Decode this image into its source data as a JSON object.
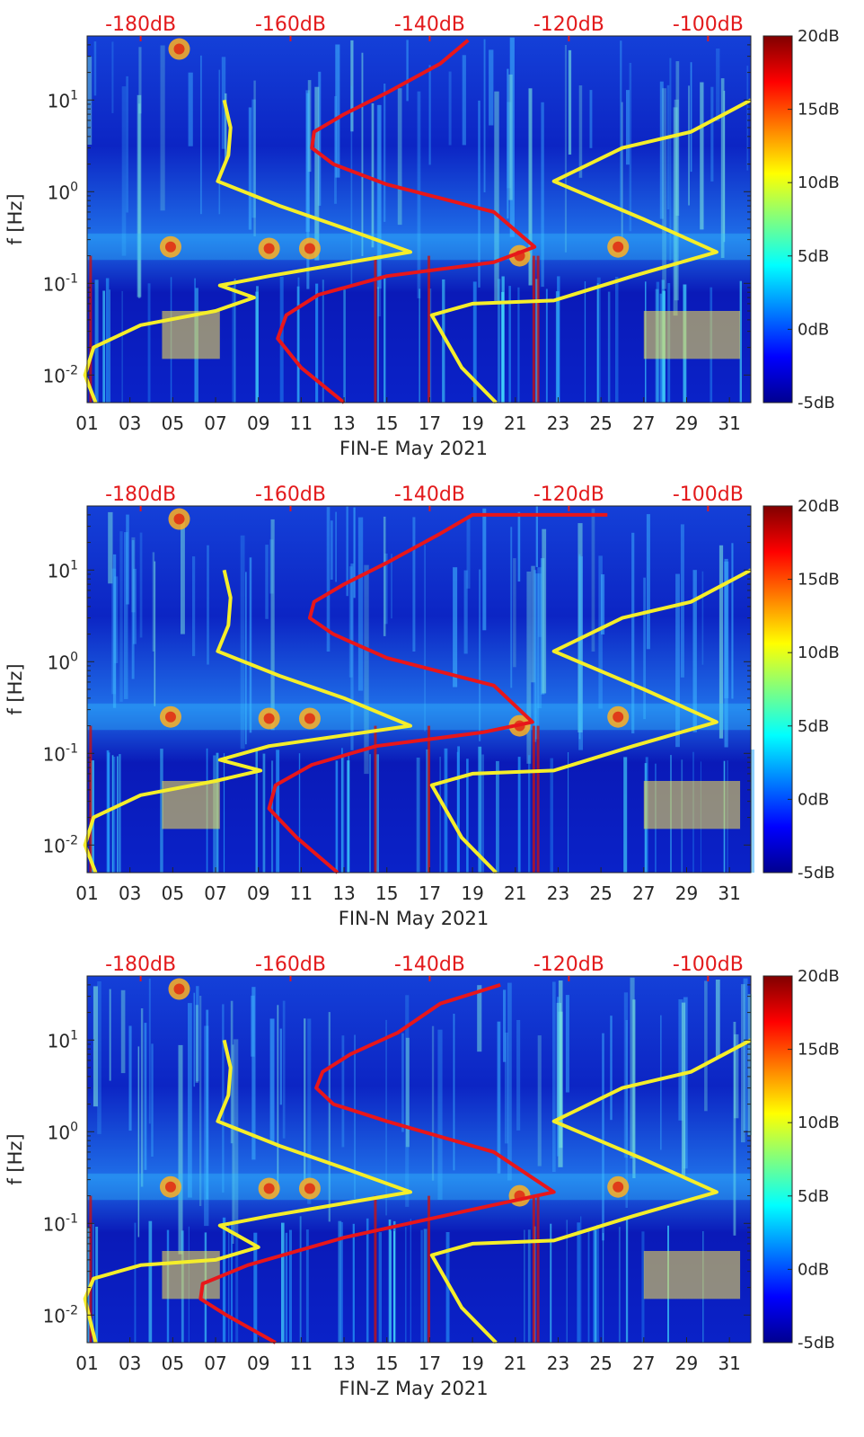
{
  "colors": {
    "background_low": "#0a1ab8",
    "red_curve": "#e8161a",
    "yellow_curve": "#f5ee2a",
    "top_axis_text": "#e31a1c"
  },
  "chart_data": [
    {
      "type": "heatmap",
      "xlabel": "FIN-E May 2021",
      "ylabel": "f [Hz]",
      "x_ticks": [
        "01",
        "03",
        "05",
        "07",
        "09",
        "11",
        "13",
        "15",
        "17",
        "19",
        "21",
        "23",
        "25",
        "27",
        "29",
        "31"
      ],
      "y_ticks": [
        "10^{-2}",
        "10^{-1}",
        "10^{0}",
        "10^{1}"
      ],
      "y_tick_values": [
        0.01,
        0.1,
        1,
        10
      ],
      "top_ticks": [
        "-180dB",
        "-160dB",
        "-140dB",
        "-120dB",
        "-100dB"
      ],
      "top_tick_days": [
        3.5,
        10.5,
        17,
        23.5,
        30
      ],
      "colorbar_ticks": [
        "20dB",
        "15dB",
        "10dB",
        "5dB",
        "0dB",
        "-5dB"
      ],
      "colorbar_values": [
        20,
        15,
        10,
        5,
        0,
        -5
      ],
      "xlim": [
        1,
        32
      ],
      "ylim": [
        0.005,
        50
      ],
      "series": [
        {
          "color": "red",
          "x": [
            13.0,
            11.0,
            9.9,
            10.3,
            11.8,
            15.0,
            20.0,
            21.9,
            20.0,
            15.0,
            12.5,
            11.5,
            11.6,
            13.0,
            15.0,
            17.5,
            18.8
          ],
          "y": [
            0.005,
            0.012,
            0.025,
            0.045,
            0.075,
            0.12,
            0.17,
            0.25,
            0.6,
            1.2,
            2.0,
            3.0,
            4.5,
            7.0,
            12,
            25,
            45
          ]
        },
        {
          "color": "yellow",
          "x": [
            1.4,
            0.9,
            1.3,
            3.5,
            7.0,
            8.8,
            7.2,
            9.5,
            16.1,
            13.0,
            10.0,
            7.1,
            7.6,
            7.7,
            7.4
          ],
          "y": [
            0.005,
            0.01,
            0.02,
            0.035,
            0.05,
            0.07,
            0.095,
            0.12,
            0.22,
            0.4,
            0.7,
            1.3,
            2.5,
            5,
            10
          ]
        },
        {
          "color": "yellow",
          "x": [
            20.1,
            18.5,
            17.1,
            19.0,
            22.8,
            26.5,
            30.4,
            27.0,
            22.8,
            26.0,
            29.2,
            32.0
          ],
          "y": [
            0.005,
            0.012,
            0.045,
            0.06,
            0.065,
            0.12,
            0.22,
            0.5,
            1.3,
            3.0,
            4.5,
            10
          ]
        }
      ]
    },
    {
      "type": "heatmap",
      "xlabel": "FIN-N May 2021",
      "ylabel": "f [Hz]",
      "x_ticks": [
        "01",
        "03",
        "05",
        "07",
        "09",
        "11",
        "13",
        "15",
        "17",
        "19",
        "21",
        "23",
        "25",
        "27",
        "29",
        "31"
      ],
      "y_ticks": [
        "10^{-2}",
        "10^{-1}",
        "10^{0}",
        "10^{1}"
      ],
      "y_tick_values": [
        0.01,
        0.1,
        1,
        10
      ],
      "top_ticks": [
        "-180dB",
        "-160dB",
        "-140dB",
        "-120dB",
        "-100dB"
      ],
      "top_tick_days": [
        3.5,
        10.5,
        17,
        23.5,
        30
      ],
      "colorbar_ticks": [
        "20dB",
        "15dB",
        "10dB",
        "5dB",
        "0dB",
        "-5dB"
      ],
      "colorbar_values": [
        20,
        15,
        10,
        5,
        0,
        -5
      ],
      "xlim": [
        1,
        32
      ],
      "ylim": [
        0.005,
        50
      ],
      "series": [
        {
          "color": "red",
          "x": [
            12.7,
            10.8,
            9.5,
            9.8,
            11.5,
            14.5,
            19.5,
            21.8,
            20.0,
            15.0,
            12.5,
            11.4,
            11.6,
            13.0,
            15.0,
            17.5,
            19.0,
            25.3
          ],
          "y": [
            0.005,
            0.012,
            0.025,
            0.045,
            0.075,
            0.12,
            0.17,
            0.22,
            0.55,
            1.1,
            2.0,
            3.0,
            4.5,
            7.0,
            12,
            25,
            40,
            40
          ]
        },
        {
          "color": "yellow",
          "x": [
            1.4,
            0.9,
            1.3,
            3.5,
            7.0,
            9.1,
            7.2,
            9.5,
            16.1,
            13.0,
            10.0,
            7.1,
            7.6,
            7.7,
            7.4
          ],
          "y": [
            0.005,
            0.01,
            0.02,
            0.035,
            0.05,
            0.065,
            0.085,
            0.12,
            0.2,
            0.4,
            0.7,
            1.3,
            2.5,
            5,
            10
          ]
        },
        {
          "color": "yellow",
          "x": [
            20.1,
            18.5,
            17.1,
            19.0,
            22.8,
            26.5,
            30.4,
            27.0,
            22.8,
            26.0,
            29.2,
            32.0
          ],
          "y": [
            0.005,
            0.012,
            0.045,
            0.06,
            0.065,
            0.12,
            0.22,
            0.5,
            1.3,
            3.0,
            4.5,
            10
          ]
        }
      ]
    },
    {
      "type": "heatmap",
      "xlabel": "FIN-Z May 2021",
      "ylabel": "f [Hz]",
      "x_ticks": [
        "01",
        "03",
        "05",
        "07",
        "09",
        "11",
        "13",
        "15",
        "17",
        "19",
        "21",
        "23",
        "25",
        "27",
        "29",
        "31"
      ],
      "y_ticks": [
        "10^{-2}",
        "10^{-1}",
        "10^{0}",
        "10^{1}"
      ],
      "y_tick_values": [
        0.01,
        0.1,
        1,
        10
      ],
      "top_ticks": [
        "-180dB",
        "-160dB",
        "-140dB",
        "-120dB",
        "-100dB"
      ],
      "top_tick_days": [
        3.5,
        10.5,
        17,
        23.5,
        30
      ],
      "colorbar_ticks": [
        "20dB",
        "15dB",
        "10dB",
        "5dB",
        "0dB",
        "-5dB"
      ],
      "colorbar_values": [
        20,
        15,
        10,
        5,
        0,
        -5
      ],
      "xlim": [
        1,
        32
      ],
      "ylim": [
        0.005,
        50
      ],
      "series": [
        {
          "color": "red",
          "x": [
            9.8,
            7.5,
            6.3,
            6.4,
            8.5,
            13.0,
            19.5,
            22.8,
            20.0,
            15.0,
            12.5,
            11.7,
            12.0,
            13.3,
            15.5,
            17.5,
            20.3
          ],
          "y": [
            0.005,
            0.01,
            0.015,
            0.022,
            0.035,
            0.07,
            0.15,
            0.22,
            0.6,
            1.3,
            2.0,
            3.0,
            4.5,
            7.0,
            12,
            25,
            40
          ]
        },
        {
          "color": "yellow",
          "x": [
            1.4,
            0.9,
            1.3,
            3.5,
            7.0,
            9.0,
            7.2,
            9.5,
            16.1,
            13.0,
            10.0,
            7.1,
            7.6,
            7.7,
            7.4
          ],
          "y": [
            0.005,
            0.015,
            0.025,
            0.035,
            0.04,
            0.055,
            0.095,
            0.12,
            0.22,
            0.4,
            0.7,
            1.3,
            2.5,
            5,
            10
          ]
        },
        {
          "color": "yellow",
          "x": [
            20.1,
            18.5,
            17.1,
            19.0,
            22.8,
            26.5,
            30.4,
            27.0,
            22.8,
            26.0,
            29.2,
            32.0
          ],
          "y": [
            0.005,
            0.012,
            0.045,
            0.06,
            0.065,
            0.12,
            0.22,
            0.5,
            1.3,
            3.0,
            4.5,
            10
          ]
        }
      ]
    }
  ]
}
